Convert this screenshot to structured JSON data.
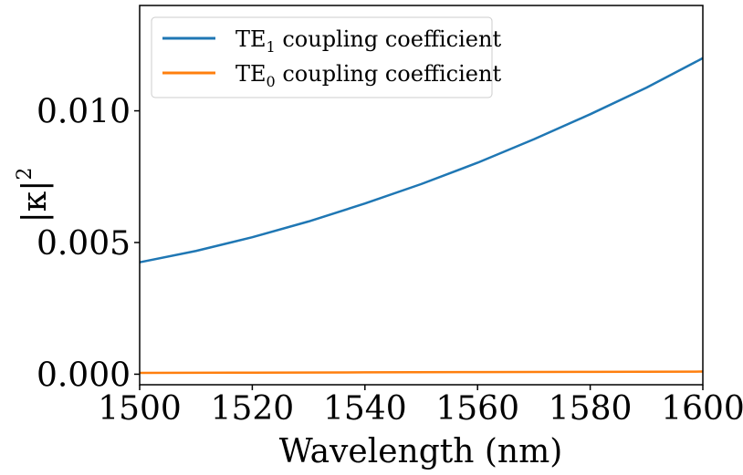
{
  "chart_data": {
    "type": "line",
    "xlabel": "Wavelength (nm)",
    "ylabel": {
      "base": "|κ|",
      "sup": "2"
    },
    "xlim": [
      1500,
      1600
    ],
    "ylim": [
      -0.0004,
      0.014
    ],
    "xticks": [
      1500,
      1520,
      1540,
      1560,
      1580,
      1600
    ],
    "yticks": [
      0.0,
      0.005,
      0.01
    ],
    "xtick_labels": [
      "1500",
      "1520",
      "1540",
      "1560",
      "1580",
      "1600"
    ],
    "ytick_labels": [
      "0.000",
      "0.005",
      "0.010"
    ],
    "grid": false,
    "legend_position": "top-left",
    "series": [
      {
        "name": "TE1 coupling coefficient",
        "legend": {
          "main": "TE",
          "sub": "1",
          "rest": " coupling coefficient"
        },
        "color": "#1f77b4",
        "x": [
          1500,
          1510,
          1520,
          1530,
          1540,
          1550,
          1560,
          1570,
          1580,
          1590,
          1600
        ],
        "y": [
          0.00425,
          0.00468,
          0.0052,
          0.0058,
          0.00648,
          0.00722,
          0.00803,
          0.00892,
          0.00987,
          0.01088,
          0.012
        ]
      },
      {
        "name": "TE0 coupling coefficient",
        "legend": {
          "main": "TE",
          "sub": "0",
          "rest": " coupling coefficient"
        },
        "color": "#ff7f0e",
        "x": [
          1500,
          1520,
          1540,
          1560,
          1580,
          1600
        ],
        "y": [
          5e-05,
          6e-05,
          7e-05,
          8e-05,
          9e-05,
          0.0001
        ]
      }
    ]
  }
}
